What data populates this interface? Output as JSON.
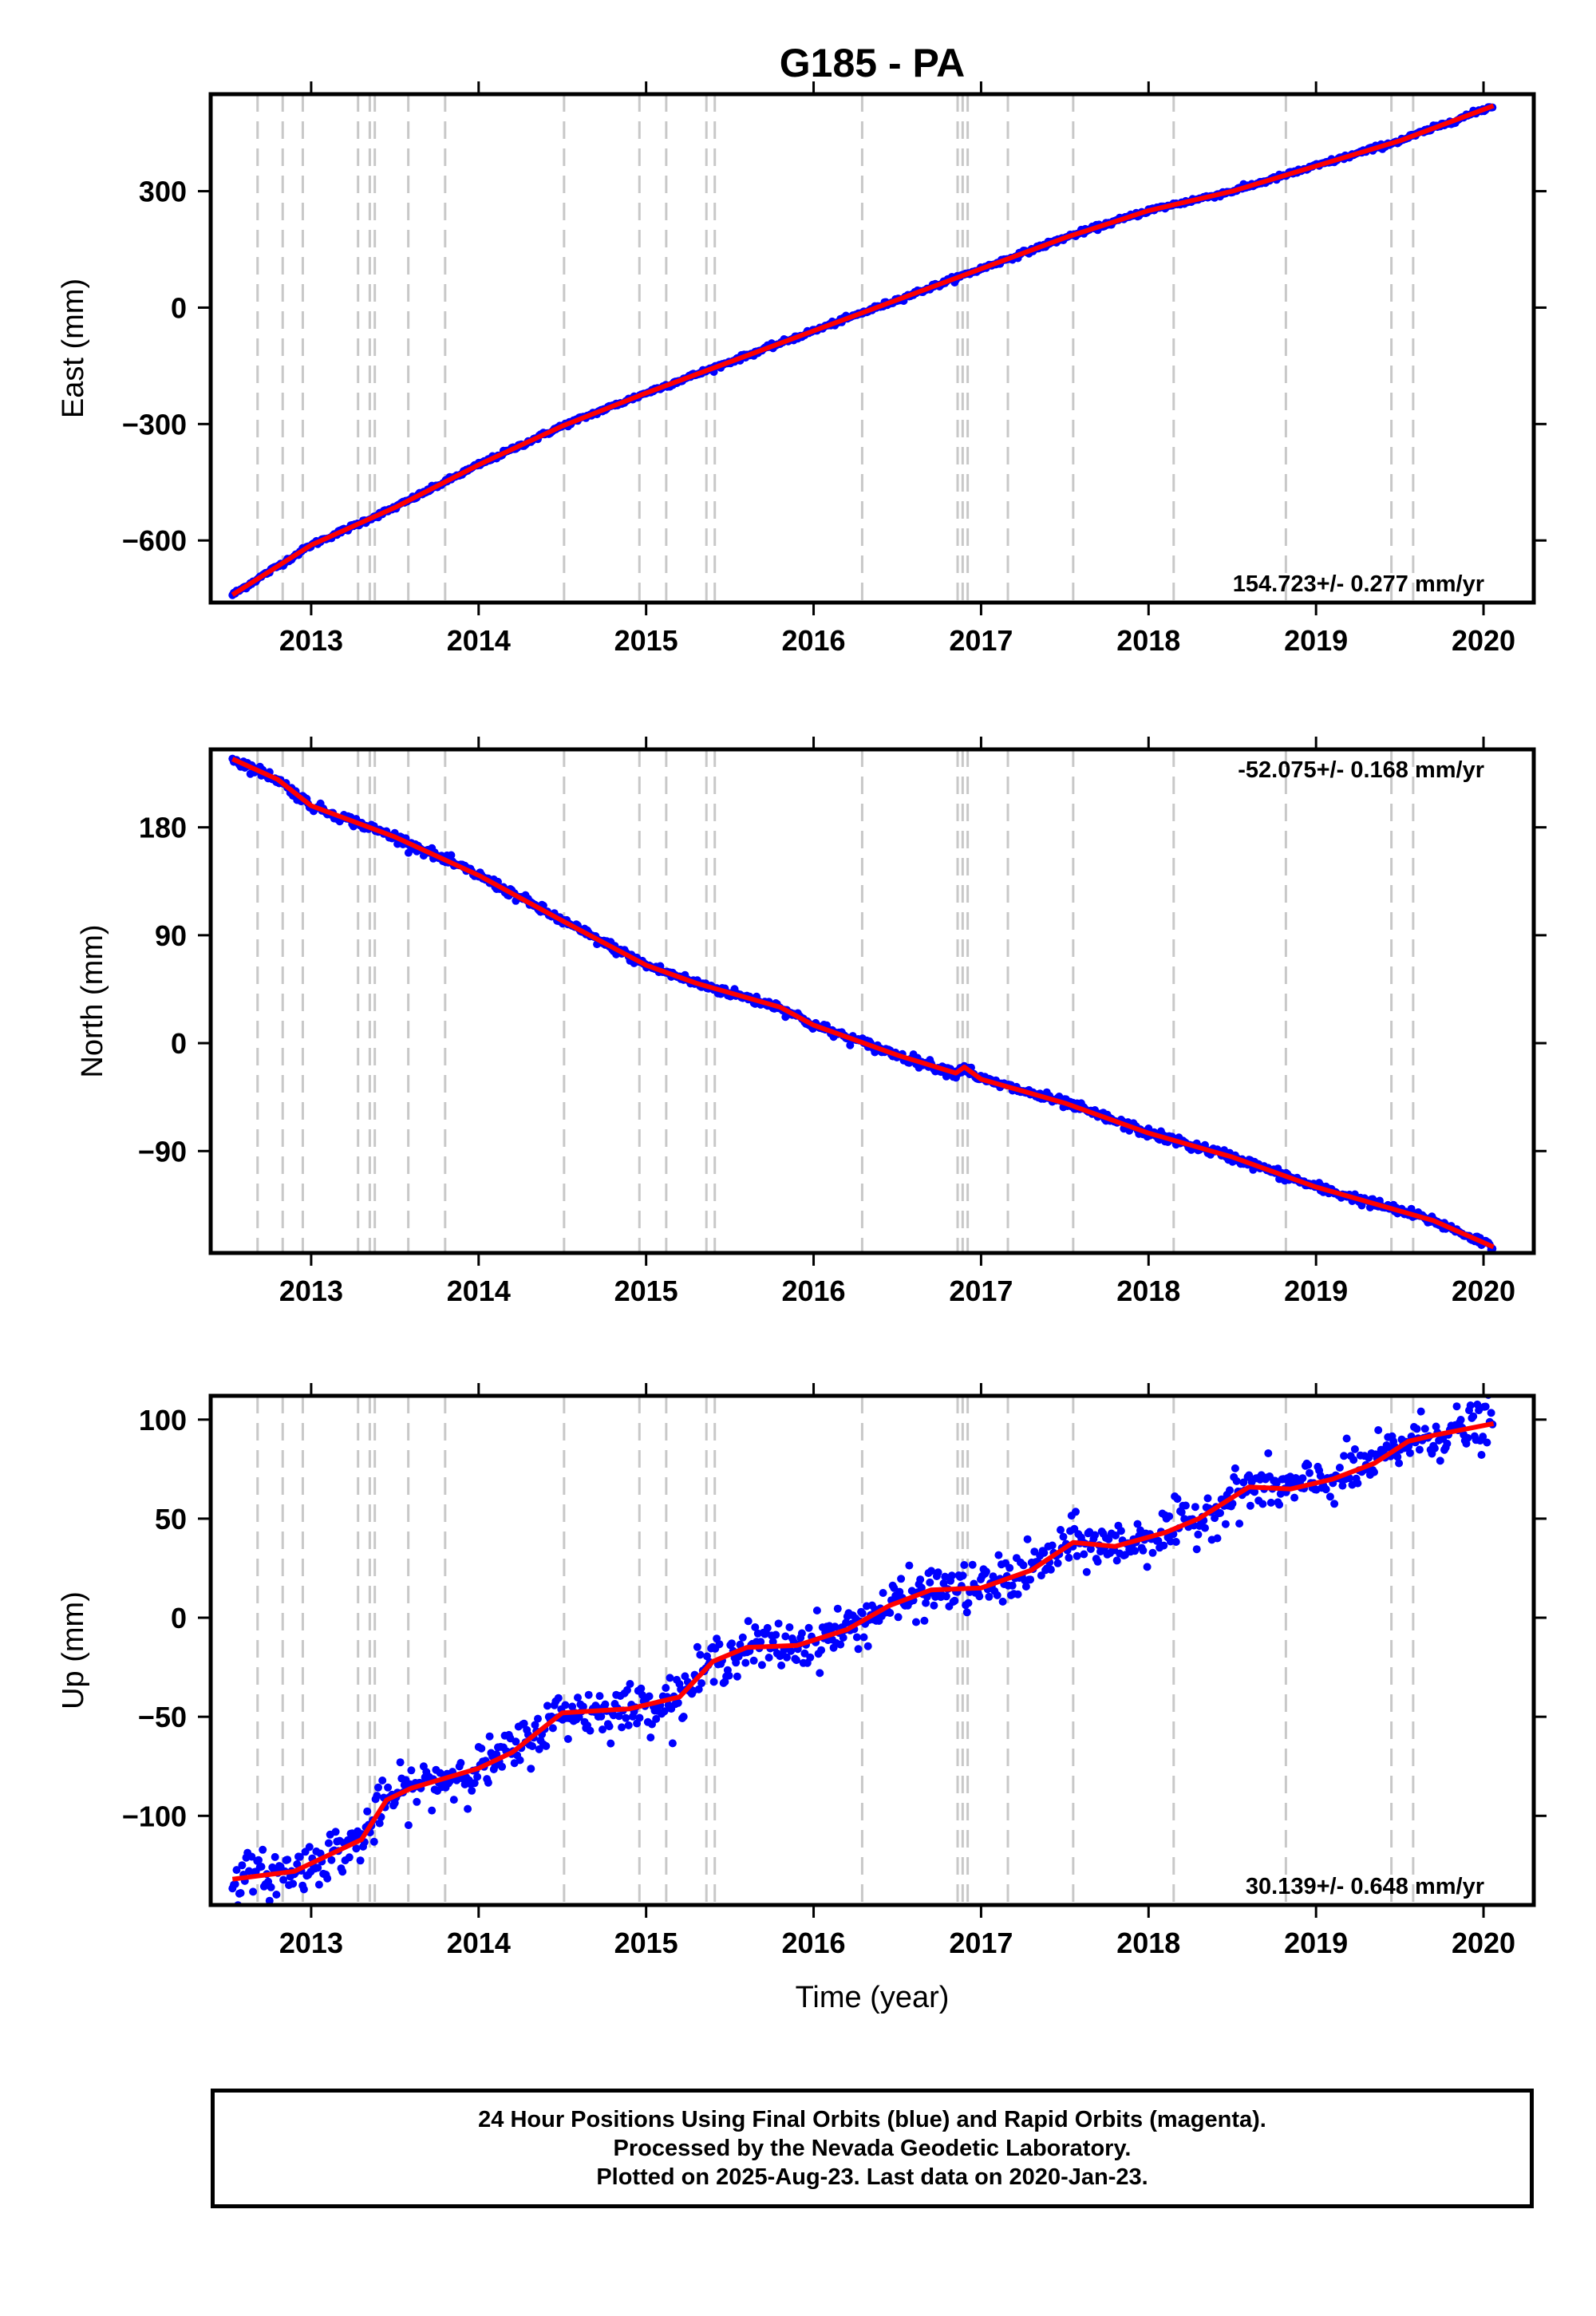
{
  "title": "G185 - PA",
  "xlabel": "Time (year)",
  "colors": {
    "data": "#0000ff",
    "model": "#ff0000",
    "steps": "#c8c8c8",
    "frame": "#000000"
  },
  "footer": {
    "line1": "24 Hour Positions Using Final Orbits (blue) and Rapid Orbits (magenta).",
    "line2": "Processed by the Nevada Geodetic Laboratory.",
    "line3": "Plotted on 2025-Aug-23. Last data on 2020-Jan-23."
  },
  "chart_data": {
    "type": "scatter",
    "x_range": [
      2012.4,
      2020.3
    ],
    "x_ticks": [
      2013,
      2014,
      2015,
      2016,
      2017,
      2018,
      2019,
      2020
    ],
    "x_tick_labels": [
      "2013",
      "2014",
      "2015",
      "2016",
      "2017",
      "2018",
      "2019",
      "2020"
    ],
    "data_start": 2012.53,
    "data_end": 2020.06,
    "step_epochs": [
      2012.68,
      2012.83,
      2012.95,
      2013.28,
      2013.35,
      2013.38,
      2013.58,
      2013.8,
      2014.51,
      2014.96,
      2015.12,
      2015.36,
      2015.41,
      2016.29,
      2016.86,
      2016.89,
      2016.92,
      2017.16,
      2017.55,
      2018.15,
      2018.82,
      2019.45,
      2019.58
    ],
    "panels": [
      {
        "name": "East",
        "ylabel": "East (mm)",
        "ylim": [
          -760,
          550
        ],
        "y_ticks": [
          -600,
          -300,
          0,
          300
        ],
        "y_tick_labels": [
          "−600",
          "−300",
          "0",
          "300"
        ],
        "rate": "154.723+/- 0.277 mm/yr",
        "rate_position": "bottom-right",
        "noise_mm": 3,
        "model": [
          [
            2012.53,
            -740
          ],
          [
            2013.0,
            -612
          ],
          [
            2013.5,
            -515
          ],
          [
            2014.0,
            -405
          ],
          [
            2014.5,
            -305
          ],
          [
            2015.0,
            -220
          ],
          [
            2015.5,
            -140
          ],
          [
            2016.0,
            -60
          ],
          [
            2016.5,
            20
          ],
          [
            2017.0,
            100
          ],
          [
            2017.5,
            180
          ],
          [
            2018.0,
            250
          ],
          [
            2018.5,
            300
          ],
          [
            2019.0,
            365
          ],
          [
            2019.5,
            430
          ],
          [
            2020.06,
            520
          ]
        ]
      },
      {
        "name": "North",
        "ylabel": "North (mm)",
        "ylim": [
          -175,
          245
        ],
        "y_ticks": [
          -90,
          0,
          90,
          180
        ],
        "y_tick_labels": [
          "−90",
          "0",
          "90",
          "180"
        ],
        "rate": "-52.075+/- 0.168 mm/yr",
        "rate_position": "top-right",
        "noise_mm": 2,
        "model": [
          [
            2012.53,
            237
          ],
          [
            2012.8,
            220
          ],
          [
            2013.0,
            198
          ],
          [
            2013.5,
            172
          ],
          [
            2014.0,
            140
          ],
          [
            2014.5,
            102
          ],
          [
            2015.0,
            65
          ],
          [
            2015.3,
            50
          ],
          [
            2015.8,
            30
          ],
          [
            2016.0,
            15
          ],
          [
            2016.5,
            -10
          ],
          [
            2016.85,
            -25
          ],
          [
            2016.9,
            -20
          ],
          [
            2017.0,
            -30
          ],
          [
            2017.5,
            -50
          ],
          [
            2018.0,
            -75
          ],
          [
            2018.5,
            -95
          ],
          [
            2019.0,
            -120
          ],
          [
            2019.5,
            -140
          ],
          [
            2019.7,
            -148
          ],
          [
            2020.06,
            -170
          ]
        ]
      },
      {
        "name": "Up",
        "ylabel": "Up (mm)",
        "ylim": [
          -145,
          112
        ],
        "y_ticks": [
          -100,
          -50,
          0,
          50,
          100
        ],
        "y_tick_labels": [
          "−100",
          "−50",
          "0",
          "50",
          "100"
        ],
        "rate": "30.139+/- 0.648 mm/yr",
        "rate_position": "bottom-right",
        "noise_mm": 6,
        "model": [
          [
            2012.53,
            -132
          ],
          [
            2012.9,
            -128
          ],
          [
            2013.1,
            -120
          ],
          [
            2013.3,
            -112
          ],
          [
            2013.45,
            -92
          ],
          [
            2013.6,
            -86
          ],
          [
            2014.0,
            -76
          ],
          [
            2014.2,
            -68
          ],
          [
            2014.5,
            -48
          ],
          [
            2014.9,
            -46
          ],
          [
            2015.2,
            -40
          ],
          [
            2015.4,
            -22
          ],
          [
            2015.6,
            -15
          ],
          [
            2015.9,
            -14
          ],
          [
            2016.2,
            -6
          ],
          [
            2016.45,
            6
          ],
          [
            2016.7,
            14
          ],
          [
            2017.0,
            15
          ],
          [
            2017.3,
            24
          ],
          [
            2017.55,
            38
          ],
          [
            2017.8,
            36
          ],
          [
            2018.1,
            43
          ],
          [
            2018.3,
            50
          ],
          [
            2018.6,
            66
          ],
          [
            2018.85,
            65
          ],
          [
            2019.1,
            70
          ],
          [
            2019.35,
            78
          ],
          [
            2019.55,
            89
          ],
          [
            2019.7,
            92
          ],
          [
            2020.06,
            98
          ]
        ]
      }
    ]
  }
}
